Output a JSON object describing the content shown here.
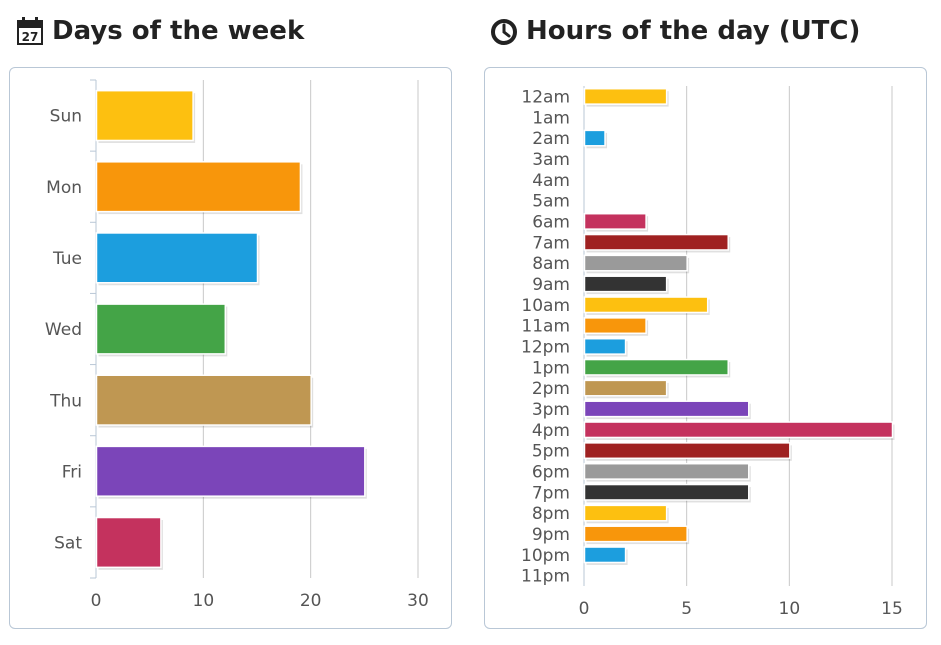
{
  "days_title": "Days of the week",
  "hours_title": "Hours of the day (UTC)",
  "icons": {
    "days": "calendar-icon",
    "hours": "clock-icon",
    "calendar_number": "27"
  },
  "chart_data": [
    {
      "type": "bar",
      "orientation": "horizontal",
      "categories": [
        "Sun",
        "Mon",
        "Tue",
        "Wed",
        "Thu",
        "Fri",
        "Sat"
      ],
      "values": [
        9,
        19,
        15,
        12,
        20,
        25,
        6
      ],
      "colors": [
        "#fdc010",
        "#f8960b",
        "#1c9ede",
        "#44a447",
        "#bf9752",
        "#7b45b9",
        "#c4325e"
      ],
      "xlim": [
        0,
        30
      ],
      "xticks": [
        "0",
        "10",
        "20",
        "30"
      ],
      "grid": true
    },
    {
      "type": "bar",
      "orientation": "horizontal",
      "categories": [
        "12am",
        "1am",
        "2am",
        "3am",
        "4am",
        "5am",
        "6am",
        "7am",
        "8am",
        "9am",
        "10am",
        "11am",
        "12pm",
        "1pm",
        "2pm",
        "3pm",
        "4pm",
        "5pm",
        "6pm",
        "7pm",
        "8pm",
        "9pm",
        "10pm",
        "11pm"
      ],
      "values": [
        4,
        0,
        1,
        0,
        0,
        0,
        3,
        7,
        5,
        4,
        6,
        3,
        2,
        7,
        4,
        8,
        15,
        10,
        8,
        8,
        4,
        5,
        2,
        0
      ],
      "colors": [
        "#fdc010",
        "#f8960b",
        "#1c9ede",
        "#44a447",
        "#bf9752",
        "#7b45b9",
        "#c4325e",
        "#9f2121",
        "#9a9a9a",
        "#333333",
        "#fdc010",
        "#f8960b",
        "#1c9ede",
        "#44a447",
        "#bf9752",
        "#7b45b9",
        "#c4325e",
        "#9f2121",
        "#9a9a9a",
        "#333333",
        "#fdc010",
        "#f8960b",
        "#1c9ede",
        "#44a447"
      ],
      "xlim": [
        0,
        15
      ],
      "xticks": [
        "0",
        "5",
        "10",
        "15"
      ],
      "grid": true
    }
  ]
}
